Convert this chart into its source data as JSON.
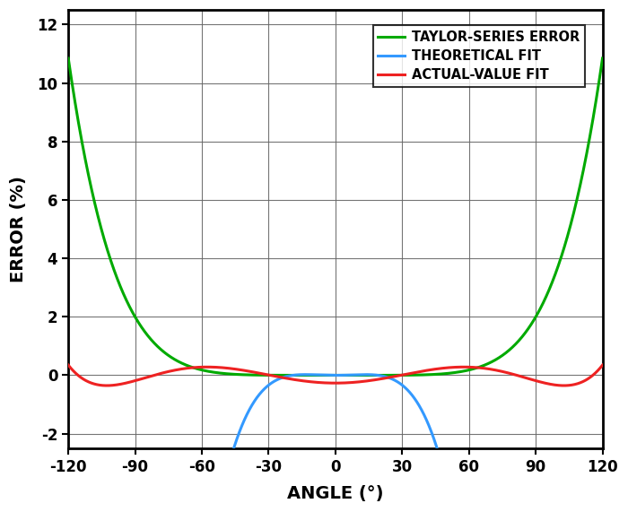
{
  "title": "",
  "xlabel": "ANGLE (°)",
  "ylabel": "ERROR (%)",
  "xlim": [
    -120,
    120
  ],
  "ylim": [
    -2.5,
    12.5
  ],
  "xticks": [
    -120,
    -90,
    -60,
    -30,
    0,
    30,
    60,
    90,
    120
  ],
  "yticks": [
    -2,
    0,
    2,
    4,
    6,
    8,
    10,
    12
  ],
  "colors": {
    "taylor": "#00aa00",
    "theoretical": "#3399ff",
    "actual": "#ee2222"
  },
  "legend_labels": [
    "TAYLOR-SERIES ERROR",
    "THEORETICAL FIT",
    "ACTUAL-VALUE FIT"
  ],
  "background_color": "#ffffff",
  "grid_color": "#666666",
  "line_width": 2.2
}
